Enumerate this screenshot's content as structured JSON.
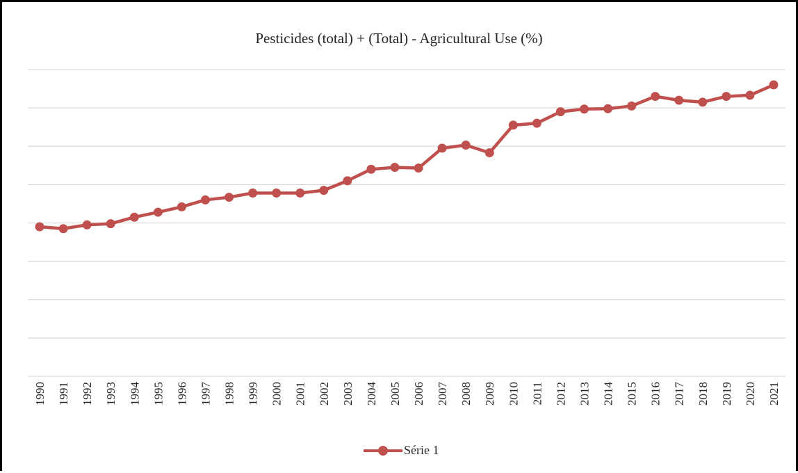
{
  "chart_data": {
    "type": "line",
    "title": "Pesticides (total) + (Total) - Agricultural Use (%)",
    "categories": [
      "1990",
      "1991",
      "1992",
      "1993",
      "1994",
      "1995",
      "1996",
      "1997",
      "1998",
      "1999",
      "2000",
      "2001",
      "2002",
      "2003",
      "2004",
      "2005",
      "2006",
      "2007",
      "2008",
      "2009",
      "2010",
      "2011",
      "2012",
      "2013",
      "2014",
      "2015",
      "2016",
      "2017",
      "2018",
      "2019",
      "2020",
      "2021"
    ],
    "series": [
      {
        "name": "Série 1",
        "color": "#c0504d",
        "values": [
          3.9,
          3.85,
          3.95,
          3.98,
          4.15,
          4.28,
          4.42,
          4.6,
          4.67,
          4.78,
          4.78,
          4.78,
          4.85,
          5.1,
          5.4,
          5.45,
          5.43,
          5.95,
          6.03,
          5.83,
          6.55,
          6.6,
          6.9,
          6.97,
          6.98,
          7.05,
          7.3,
          7.2,
          7.15,
          7.3,
          7.33,
          7.6
        ]
      }
    ],
    "ylim": [
      0,
      8
    ],
    "grid": true,
    "xlabel": "",
    "ylabel": "",
    "legend_position": "bottom"
  }
}
